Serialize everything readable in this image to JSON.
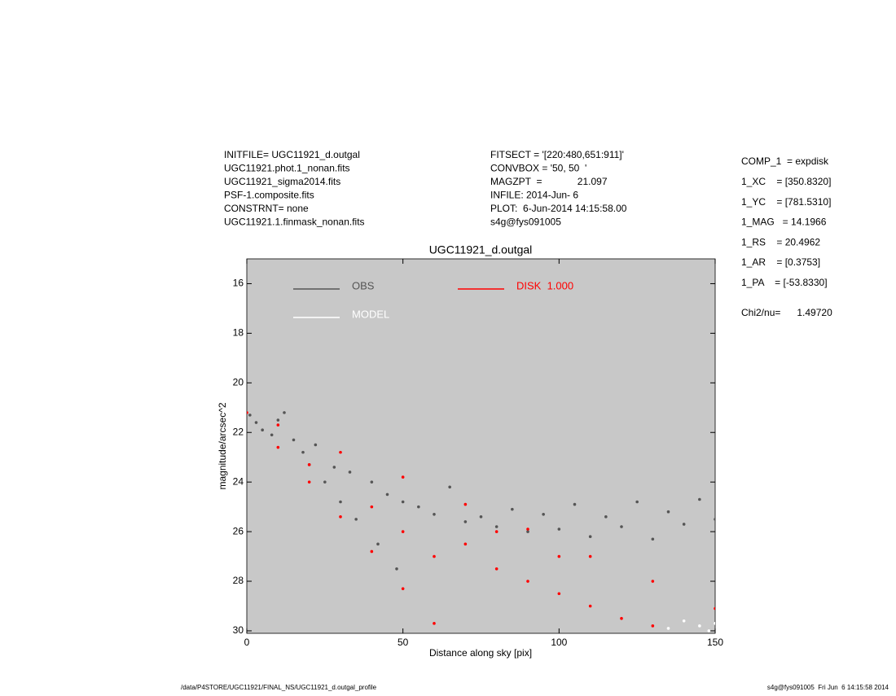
{
  "chart_data": {
    "type": "scatter",
    "title": "UGC11921_d.outgal",
    "x_label": "Distance along sky [pix]",
    "y_label": "magnitude/arcsec^2",
    "xlim": [
      0,
      150
    ],
    "ylim": [
      30.1,
      15
    ],
    "xticks": [
      0,
      50,
      100,
      150
    ],
    "yticks": [
      16,
      18,
      20,
      22,
      24,
      26,
      28,
      30
    ],
    "plot_background": "#c8c8c8",
    "series": [
      {
        "name": "OBS",
        "color": "#555555",
        "x": [
          1,
          3,
          5,
          8,
          10,
          12,
          15,
          18,
          20,
          22,
          25,
          28,
          30,
          33,
          35,
          40,
          42,
          45,
          48,
          50,
          55,
          60,
          65,
          70,
          75,
          80,
          85,
          90,
          95,
          100,
          105,
          110,
          115,
          120,
          125,
          130,
          135,
          140,
          145,
          150
        ],
        "values": [
          21.3,
          21.6,
          21.9,
          22.1,
          21.5,
          21.2,
          22.3,
          22.8,
          23.3,
          22.5,
          24.0,
          23.4,
          24.8,
          23.6,
          25.5,
          24.0,
          26.5,
          24.5,
          27.5,
          24.8,
          25.0,
          25.3,
          24.2,
          25.6,
          25.4,
          25.8,
          25.1,
          26.0,
          25.3,
          25.9,
          24.9,
          26.2,
          25.4,
          25.8,
          24.8,
          26.3,
          25.2,
          25.7,
          24.7,
          25.5
        ]
      },
      {
        "name": "MODEL",
        "color": "#ffffff",
        "x": [
          135,
          140,
          145,
          148,
          150
        ],
        "values": [
          29.9,
          29.6,
          29.8,
          30.0,
          29.7
        ]
      },
      {
        "name": "DISK  1.000",
        "color": "#ff0000",
        "x": [
          0,
          10,
          30,
          50,
          70,
          90,
          110,
          130,
          150,
          10,
          20,
          30,
          40,
          50,
          60,
          20,
          40,
          50,
          60,
          70,
          80,
          80,
          90,
          100,
          100,
          110,
          120,
          130
        ],
        "values": [
          21.2,
          21.7,
          22.8,
          23.8,
          24.9,
          25.9,
          27.0,
          28.0,
          29.1,
          22.6,
          24.0,
          25.4,
          26.8,
          28.3,
          29.7,
          23.3,
          25.0,
          26.0,
          27.0,
          26.5,
          26.0,
          27.5,
          28.0,
          27.0,
          28.5,
          29.0,
          29.5,
          29.8
        ]
      }
    ],
    "header_left": [
      "INITFILE= UGC11921_d.outgal",
      "UGC11921.phot.1_nonan.fits",
      "UGC11921_sigma2014.fits",
      "PSF-1.composite.fits",
      "CONSTRNT= none",
      "UGC11921.1.finmask_nonan.fits"
    ],
    "header_middle": [
      "FITSECT = '[220:480,651:911]'",
      "CONVBOX = '50, 50  '",
      "MAGZPT  =             21.097",
      "INFILE: 2014-Jun- 6",
      "PLOT:  6-Jun-2014 14:15:58.00",
      "s4g@fys091005"
    ],
    "fit_parameters": [
      "COMP_1  = expdisk",
      "1_XC    = [350.8320]",
      "1_YC    = [781.5310]",
      "1_MAG   = 14.1966",
      "1_RS    = 20.4962",
      "1_AR    = [0.3753]",
      "1_PA    = [-53.8330]"
    ],
    "chi2": "Chi2/nu=      1.49720",
    "footer_left": "/data/P4STORE/UGC11921/FINAL_NS/UGC11921_d.outgal_profile",
    "footer_right": "s4g@fys091005  Fri Jun  6 14:15:58 2014"
  }
}
